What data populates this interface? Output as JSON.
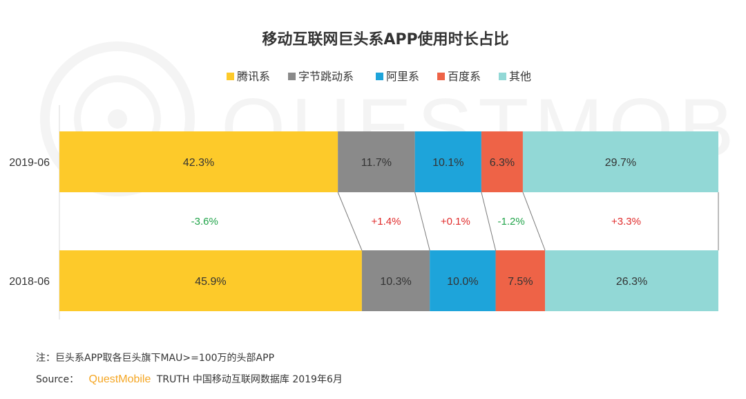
{
  "chart_data": {
    "type": "bar",
    "orientation": "horizontal",
    "stacked": "100%",
    "title": "移动互联网巨头系APP使用时长占比",
    "categories": [
      "2019-06",
      "2018-06"
    ],
    "series": [
      {
        "name": "腾讯系",
        "color": "#FDCA2A",
        "values": [
          42.3,
          45.9
        ],
        "labels": [
          "42.3%",
          "45.9%"
        ]
      },
      {
        "name": "字节跳动系",
        "color": "#8A8A8A",
        "values": [
          11.7,
          10.3
        ],
        "labels": [
          "11.7%",
          "10.3%"
        ]
      },
      {
        "name": "阿里系",
        "color": "#1EA4DA",
        "values": [
          10.1,
          10.0
        ],
        "labels": [
          "10.1%",
          "10.0%"
        ]
      },
      {
        "name": "百度系",
        "color": "#EE6347",
        "values": [
          6.3,
          7.5
        ],
        "labels": [
          "6.3%",
          "7.5%"
        ]
      },
      {
        "name": "其他",
        "color": "#92D8D6",
        "values": [
          29.7,
          26.3
        ],
        "labels": [
          "29.7%",
          "26.3%"
        ]
      }
    ],
    "changes": [
      "-3.6%",
      "+1.4%",
      "+0.1%",
      "-1.2%",
      "+3.3%"
    ],
    "change_colors": {
      "positive": "#E02B2B",
      "negative": "#21A44A"
    },
    "legend_position": "top-center",
    "grid": false
  },
  "footer": {
    "note": "注：巨头系APP取各巨头旗下MAU>=100万的头部APP",
    "source_label": "Source：",
    "source_brand": "QuestMobile",
    "source_rest": "TRUTH 中国移动互联网数据库 2019年6月"
  },
  "watermark": "QUESTMOBILE"
}
